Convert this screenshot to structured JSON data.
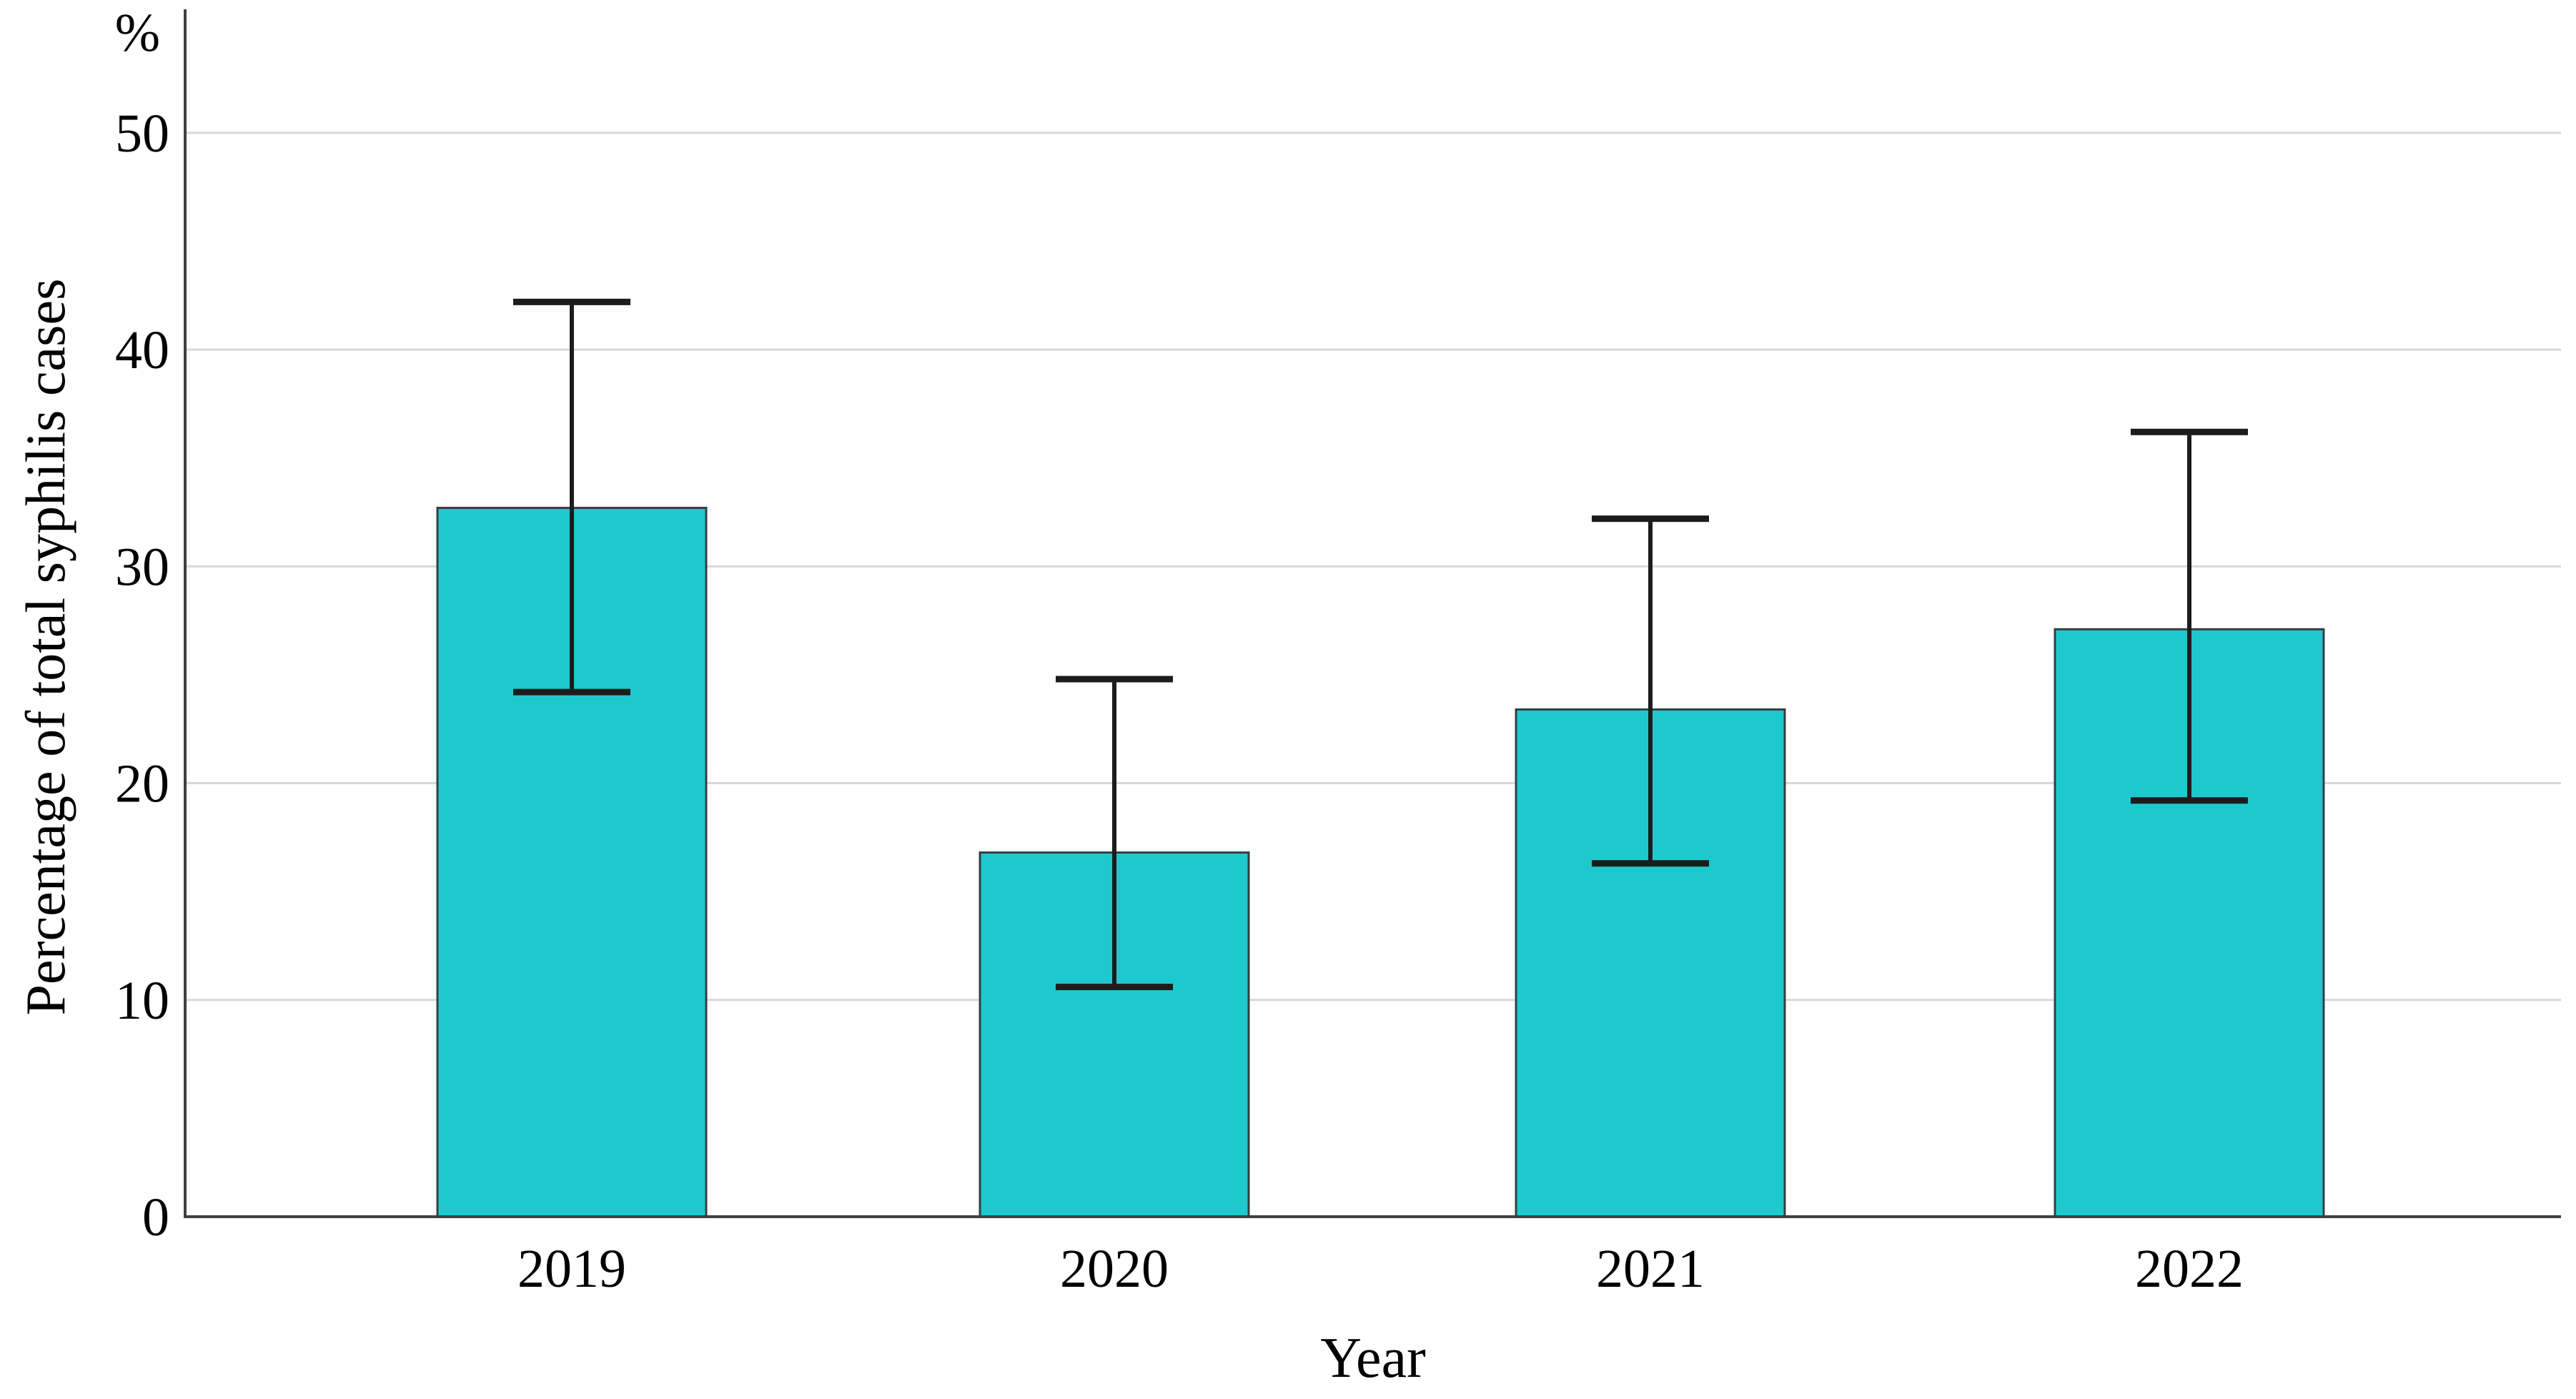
{
  "figure": {
    "background": "#ffffff"
  },
  "chart_data": {
    "type": "bar",
    "title": "",
    "categories": [
      "2019",
      "2020",
      "2021",
      "2022"
    ],
    "series": [
      {
        "name": "Percentage of total syphilis cases",
        "values": [
          32.7,
          16.8,
          23.4,
          27.1
        ],
        "error_low": [
          24.2,
          10.6,
          16.3,
          19.2
        ],
        "error_high": [
          42.2,
          24.8,
          32.2,
          36.2
        ]
      }
    ],
    "xlabel": "Year",
    "ylabel": "Percentage of total syphilis cases",
    "y_unit_label": "%",
    "yticks": [
      0,
      10,
      20,
      30,
      40,
      50
    ],
    "ylim": [
      0,
      55.7
    ],
    "grid": "horizontal-only",
    "legend": "none",
    "colors": {
      "bar_fill": "#1EC9CE",
      "bar_border": "#333F41",
      "gridline": "#D8D8D8",
      "axis": "#404040",
      "error_bar": "#1C1C1C",
      "text": "#000000"
    }
  }
}
